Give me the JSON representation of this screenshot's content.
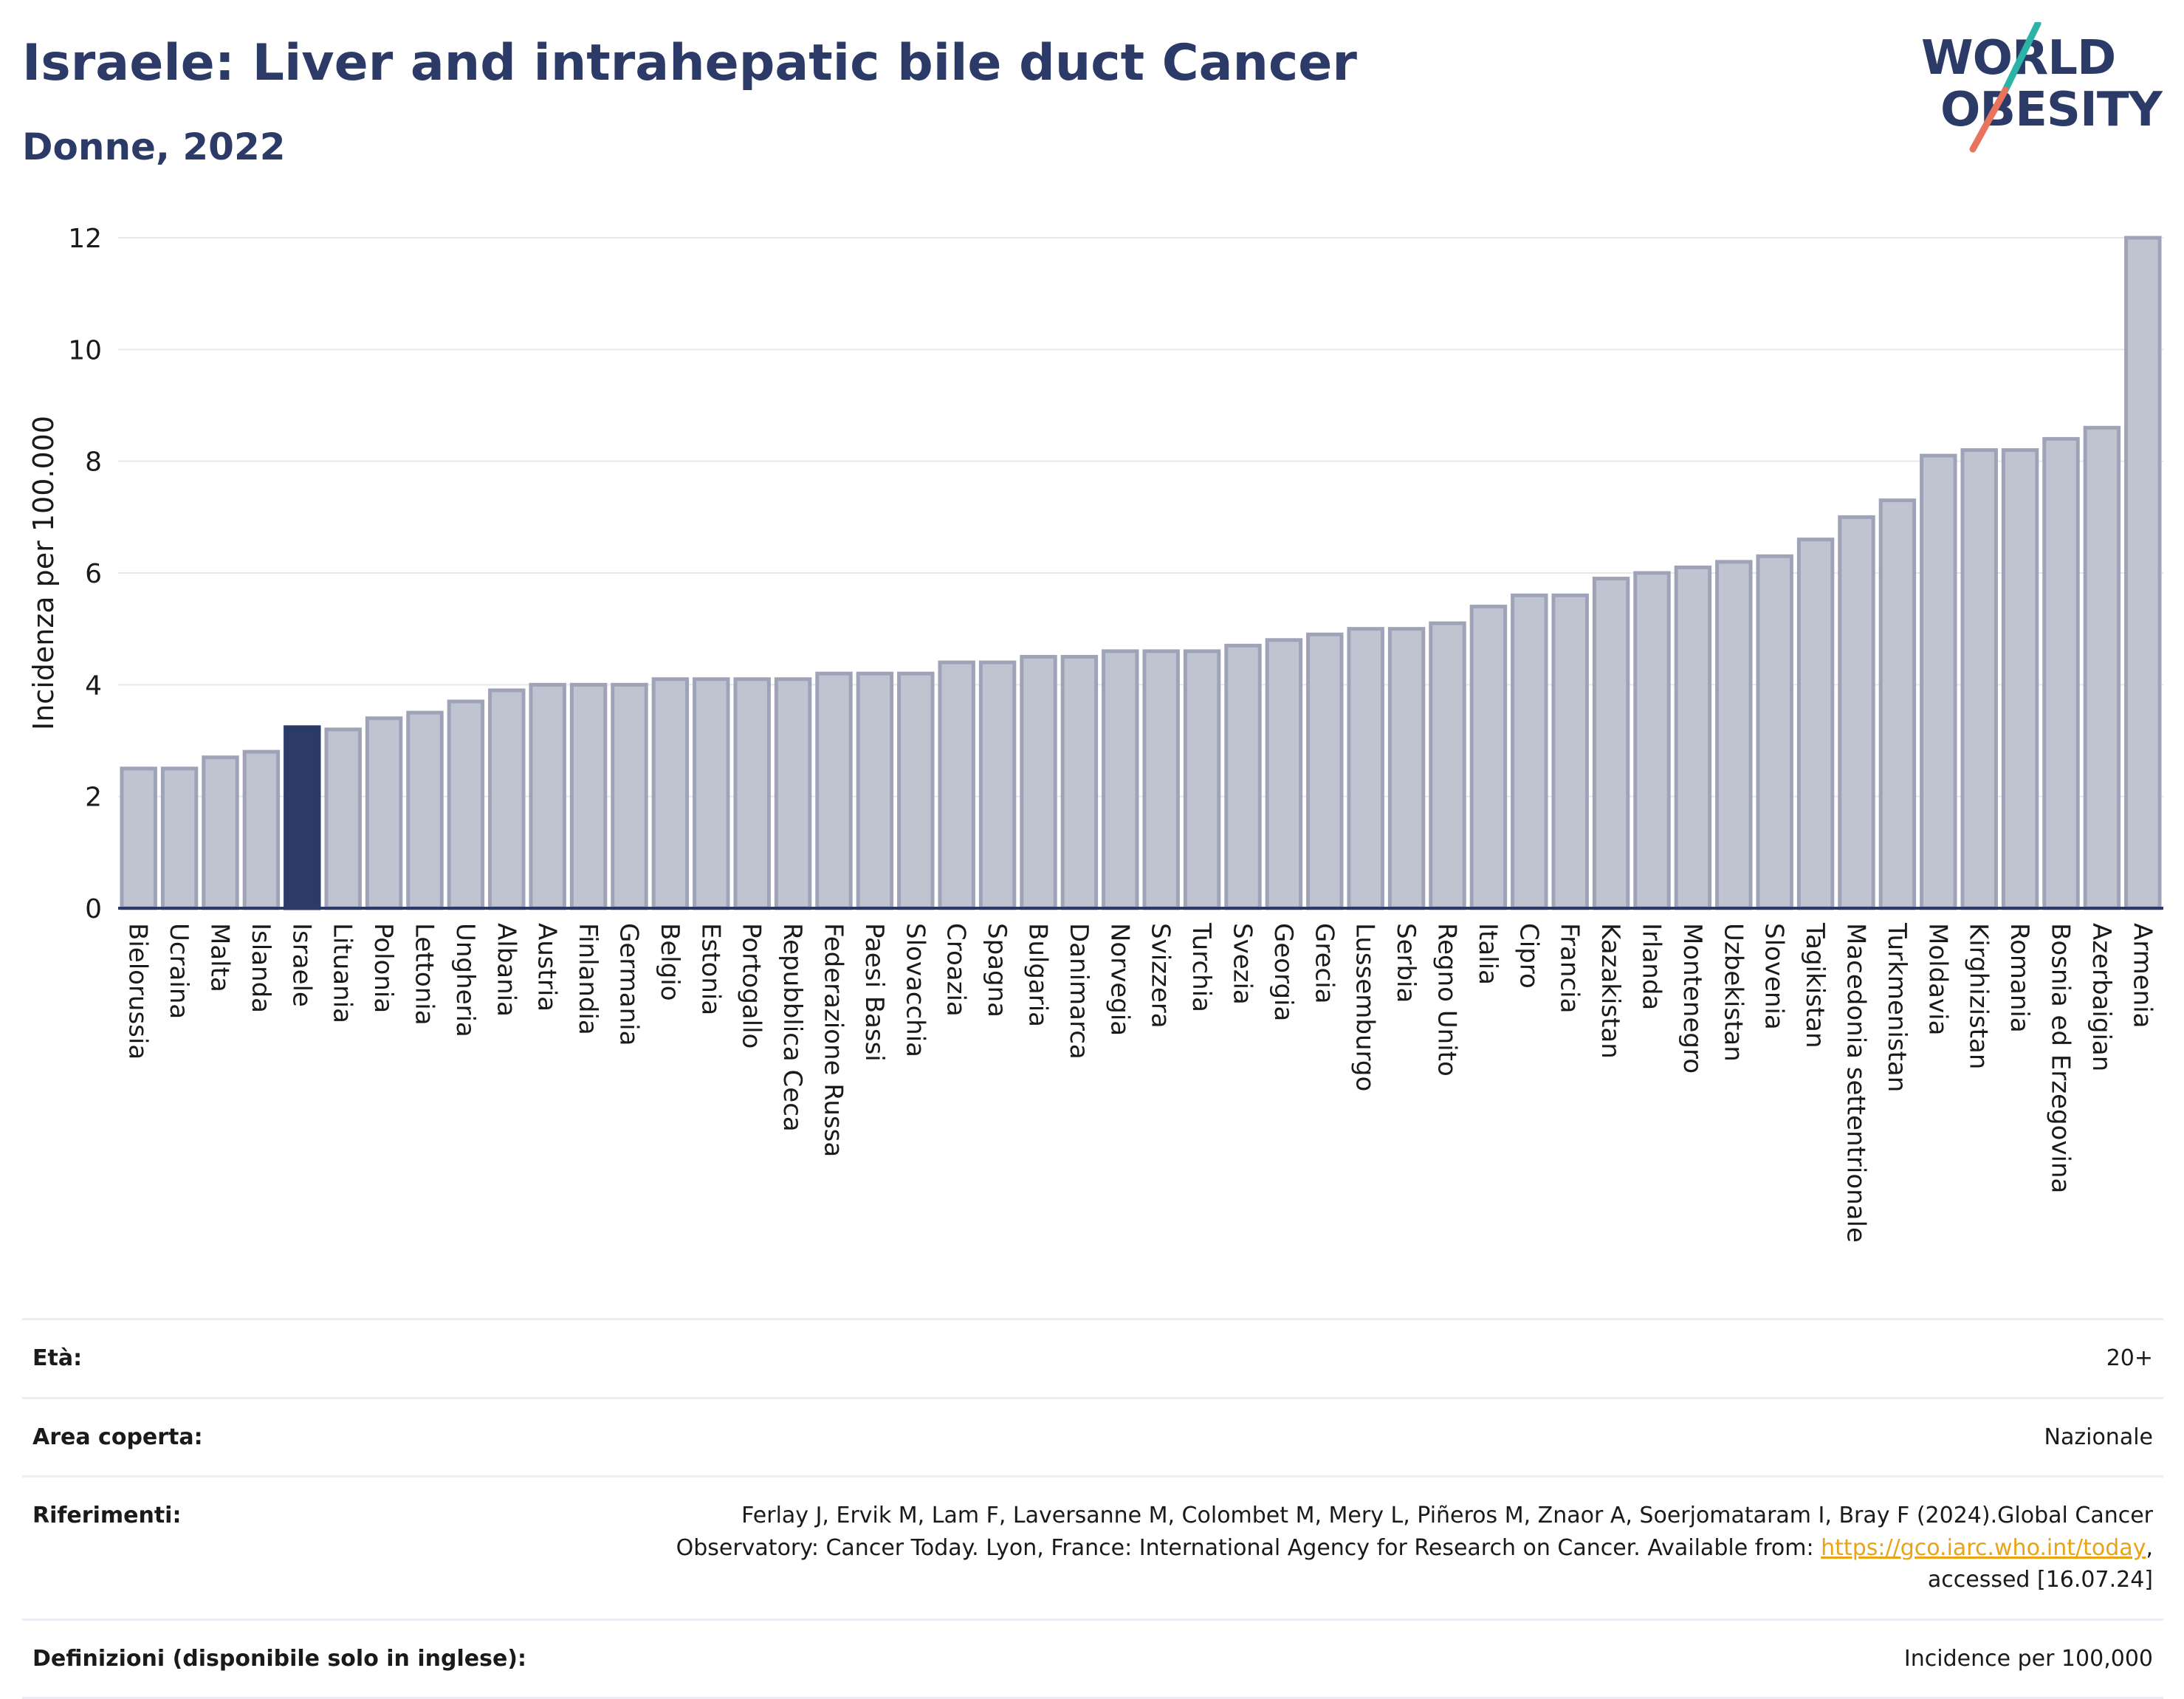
{
  "header": {
    "title": "Israele: Liver and intrahepatic bile duct Cancer",
    "subtitle": "Donne, 2022"
  },
  "logo": {
    "line1": "WORLD",
    "line2": "OBESITY",
    "colors": {
      "text": "#2b3a67",
      "slash_teal": "#2ab3a6",
      "slash_coral": "#e8735e"
    }
  },
  "colors": {
    "bar": "#c0c4d1",
    "bar_stroke": "#9ea3b8",
    "highlight": "#2b3a67",
    "grid": "#e6e8ee",
    "axis": "#2b3a67",
    "link": "#e8a317"
  },
  "chart_data": {
    "type": "bar",
    "title": "Israele: Liver and intrahepatic bile duct Cancer",
    "subtitle": "Donne, 2022",
    "xlabel": "",
    "ylabel": "Incidenza per 100.000",
    "ylim": [
      0,
      12
    ],
    "yticks": [
      0,
      2,
      4,
      6,
      8,
      10,
      12
    ],
    "grid": true,
    "highlight": "Israele",
    "categories": [
      "Bielorussia",
      "Ucraina",
      "Malta",
      "Islanda",
      "Israele",
      "Lituania",
      "Polonia",
      "Lettonia",
      "Ungheria",
      "Albania",
      "Austria",
      "Finlandia",
      "Germania",
      "Belgio",
      "Estonia",
      "Portogallo",
      "Repubblica Ceca",
      "Federazione Russa",
      "Paesi Bassi",
      "Slovacchia",
      "Croazia",
      "Spagna",
      "Bulgaria",
      "Danimarca",
      "Norvegia",
      "Svizzera",
      "Turchia",
      "Svezia",
      "Georgia",
      "Grecia",
      "Lussemburgo",
      "Serbia",
      "Regno Unito",
      "Italia",
      "Cipro",
      "Francia",
      "Kazakistan",
      "Irlanda",
      "Montenegro",
      "Uzbekistan",
      "Slovenia",
      "Tagikistan",
      "Macedonia settentrionale",
      "Turkmenistan",
      "Moldavia",
      "Kirghizistan",
      "Romania",
      "Bosnia ed Erzegovina",
      "Azerbaigian",
      "Armenia"
    ],
    "values": [
      2.5,
      2.5,
      2.7,
      2.8,
      3.24,
      3.2,
      3.4,
      3.5,
      3.7,
      3.9,
      4.0,
      4.0,
      4.0,
      4.1,
      4.1,
      4.1,
      4.1,
      4.2,
      4.2,
      4.2,
      4.4,
      4.4,
      4.5,
      4.5,
      4.6,
      4.6,
      4.6,
      4.7,
      4.8,
      4.9,
      5.0,
      5.0,
      5.1,
      5.4,
      5.6,
      5.6,
      5.9,
      6.0,
      6.1,
      6.2,
      6.3,
      6.6,
      7.0,
      7.3,
      8.1,
      8.2,
      8.2,
      8.4,
      8.6,
      12.0
    ]
  },
  "info": {
    "rows": [
      {
        "label": "Età:",
        "value": "20+"
      },
      {
        "label": "Area coperta:",
        "value": "Nazionale"
      },
      {
        "label": "Riferimenti:",
        "value_before": "Ferlay J, Ervik M, Lam F, Laversanne M, Colombet M, Mery L, Piñeros M, Znaor A, Soerjomataram I, Bray F (2024).Global Cancer Observatory: Cancer Today. Lyon, France: International Agency for Research on Cancer. Available from: ",
        "link": "https://gco.iarc.who.int/today",
        "value_after": ", accessed [16.07.24]"
      },
      {
        "label": "Definizioni (disponibile solo in inglese):",
        "value": "Incidence per 100,000"
      }
    ]
  }
}
